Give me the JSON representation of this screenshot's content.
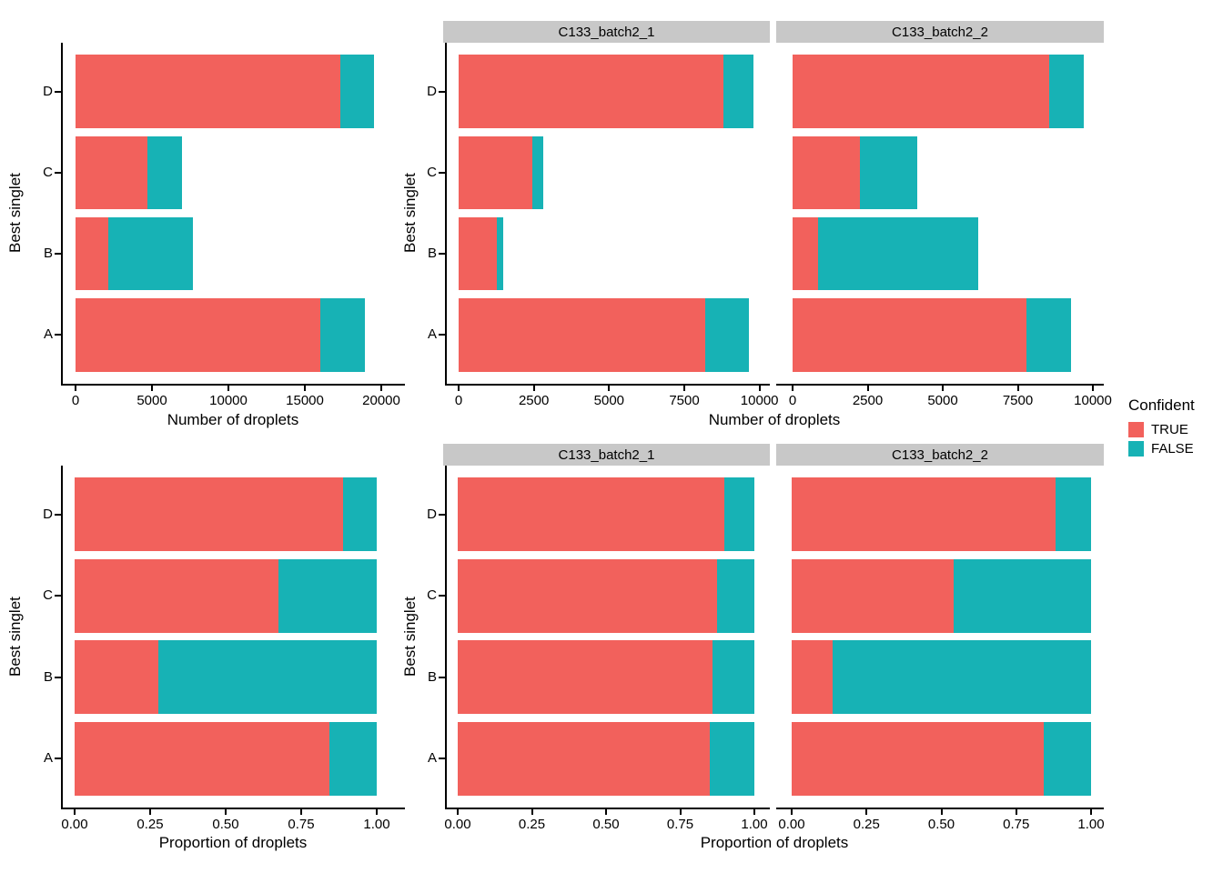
{
  "figure": {
    "y_axis_title": "Best singlet",
    "legend": {
      "title": "Confident",
      "entries": [
        {
          "label": "TRUE",
          "color": "#F2615C"
        },
        {
          "label": "FALSE",
          "color": "#17B2B5"
        }
      ]
    }
  },
  "colors": {
    "series_true": "#F2615C",
    "series_false": "#17B2B5",
    "strip_bg": "#C8C8C8",
    "axis": "#000000",
    "background": "#FFFFFF"
  },
  "chart_data": {
    "type": "bar",
    "orientation": "horizontal",
    "stacked": true,
    "grid": false,
    "legend_position": "right",
    "categories_top_to_bottom": [
      "D",
      "C",
      "B",
      "A"
    ],
    "series": [
      {
        "name": "TRUE",
        "color": "#F2615C"
      },
      {
        "name": "FALSE",
        "color": "#17B2B5"
      }
    ],
    "rows": [
      {
        "xlabel": "Number of droplets",
        "panels": [
          {
            "facet": null,
            "xlim": [
              0,
              20000
            ],
            "xticks": [
              0,
              5000,
              10000,
              15000,
              20000
            ],
            "xtick_labels": [
              "0",
              "5000",
              "10000",
              "15000",
              "20000"
            ],
            "values": {
              "TRUE": [
                17350,
                4690,
                2120,
                16000
              ],
              "FALSE": [
                2150,
                2260,
                5540,
                2950
              ]
            }
          },
          {
            "facet": "C133_batch2_1",
            "xlim": [
              0,
              10000
            ],
            "xticks": [
              0,
              2500,
              5000,
              7500,
              10000
            ],
            "xtick_labels": [
              "0",
              "2500",
              "5000",
              "7500",
              "10000"
            ],
            "values": {
              "TRUE": [
                8800,
                2450,
                1270,
                8200
              ],
              "FALSE": [
                1000,
                350,
                210,
                1450
              ]
            }
          },
          {
            "facet": "C133_batch2_2",
            "xlim": [
              0,
              10000
            ],
            "xticks": [
              0,
              2500,
              5000,
              7500,
              10000
            ],
            "xtick_labels": [
              "0",
              "2500",
              "5000",
              "7500",
              "10000"
            ],
            "values": {
              "TRUE": [
                8550,
                2240,
                850,
                7800
              ],
              "FALSE": [
                1150,
                1910,
                5330,
                1470
              ]
            }
          }
        ]
      },
      {
        "xlabel": "Proportion of droplets",
        "panels": [
          {
            "facet": null,
            "xlim": [
              0,
              1
            ],
            "xticks": [
              0,
              0.25,
              0.5,
              0.75,
              1
            ],
            "xtick_labels": [
              "0.00",
              "0.25",
              "0.50",
              "0.75",
              "1.00"
            ],
            "values": {
              "TRUE": [
                0.89,
                0.675,
                0.277,
                0.844
              ],
              "FALSE": [
                0.11,
                0.325,
                0.723,
                0.156
              ]
            }
          },
          {
            "facet": "C133_batch2_1",
            "xlim": [
              0,
              1
            ],
            "xticks": [
              0,
              0.25,
              0.5,
              0.75,
              1
            ],
            "xtick_labels": [
              "0.00",
              "0.25",
              "0.50",
              "0.75",
              "1.00"
            ],
            "values": {
              "TRUE": [
                0.898,
                0.875,
                0.858,
                0.85
              ],
              "FALSE": [
                0.102,
                0.125,
                0.142,
                0.15
              ]
            }
          },
          {
            "facet": "C133_batch2_2",
            "xlim": [
              0,
              1
            ],
            "xticks": [
              0,
              0.25,
              0.5,
              0.75,
              1
            ],
            "xtick_labels": [
              "0.00",
              "0.25",
              "0.50",
              "0.75",
              "1.00"
            ],
            "values": {
              "TRUE": [
                0.881,
                0.54,
                0.138,
                0.841
              ],
              "FALSE": [
                0.119,
                0.46,
                0.862,
                0.159
              ]
            }
          }
        ]
      }
    ]
  }
}
